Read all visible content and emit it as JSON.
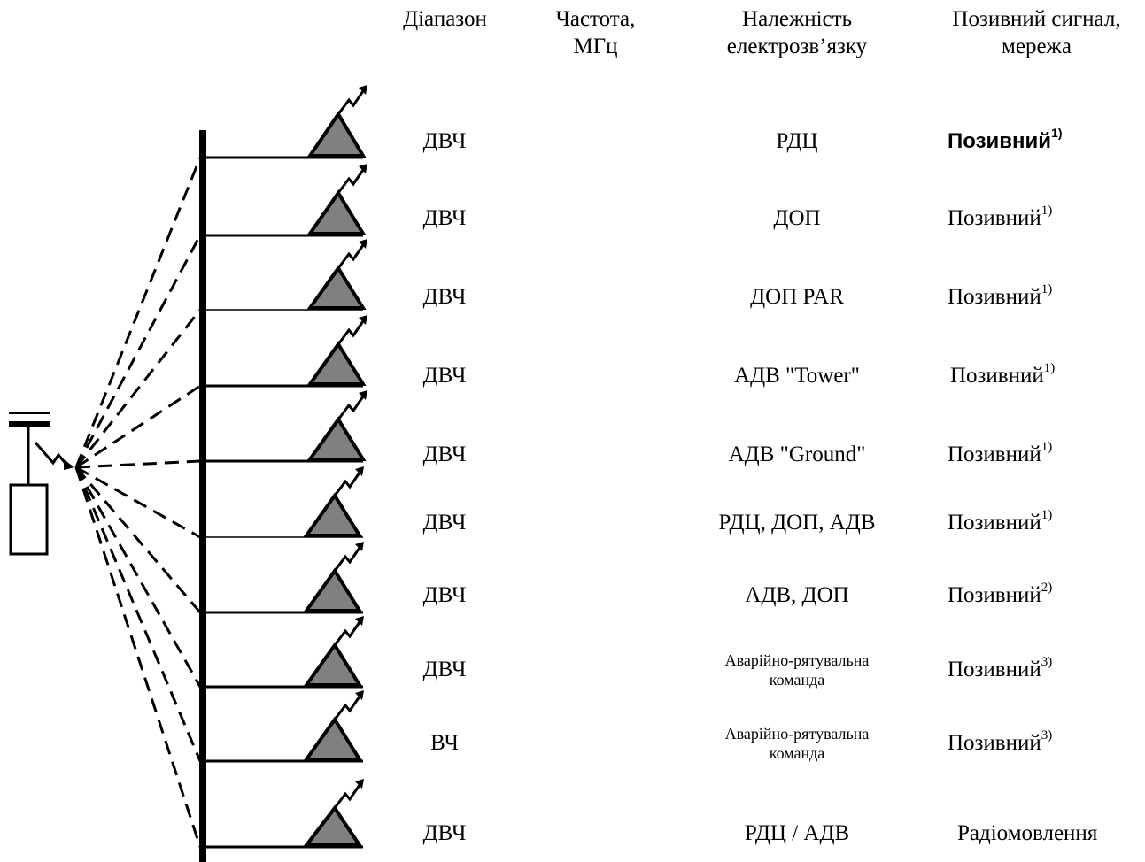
{
  "headers": {
    "range": "Діапазон",
    "frequency": "Частота,\nМГц",
    "affiliation": "Належність\nелектрозв’язку",
    "callsign": "Позивний сигнал,\nмережа"
  },
  "rows": [
    {
      "range": "ДВЧ",
      "affiliation": "РДЦ",
      "callsign": "Позивний",
      "note": "1)",
      "bold": true
    },
    {
      "range": "ДВЧ",
      "affiliation": "ДОП",
      "callsign": "Позивний",
      "note": "1)"
    },
    {
      "range": "ДВЧ",
      "affiliation": "ДОП PAR",
      "callsign": "Позивний",
      "note": "1)"
    },
    {
      "range": "ДВЧ",
      "affiliation": "АДВ \"Tower\"",
      "callsign": "Позивний",
      "note": "1)"
    },
    {
      "range": "ДВЧ",
      "affiliation": "АДВ \"Ground\"",
      "callsign": "Позивний",
      "note": "1)"
    },
    {
      "range": "ДВЧ",
      "affiliation": "РДЦ, ДОП, АДВ",
      "callsign": "Позивний",
      "note": "1)"
    },
    {
      "range": "ДВЧ",
      "affiliation": "АДВ, ДОП",
      "callsign": "Позивний",
      "note": "2)"
    },
    {
      "range": "ДВЧ",
      "affiliation": "Аварійно-рятувальна\nкоманда",
      "callsign": "Позивний",
      "note": "3)",
      "small": true
    },
    {
      "range": "ВЧ",
      "affiliation": "Аварійно-рятувальна\nкоманда",
      "callsign": "Позивний",
      "note": "3)",
      "small": true
    },
    {
      "range": "ДВЧ",
      "affiliation": "РДЦ / АДВ",
      "callsign": "Радіомовлення",
      "note": ""
    }
  ],
  "colors": {
    "triangle_fill": "#808080",
    "line": "#000000"
  },
  "icons": {
    "aircraft": "aircraft-icon",
    "antenna": "antenna-icon",
    "lightning": "lightning-icon"
  }
}
